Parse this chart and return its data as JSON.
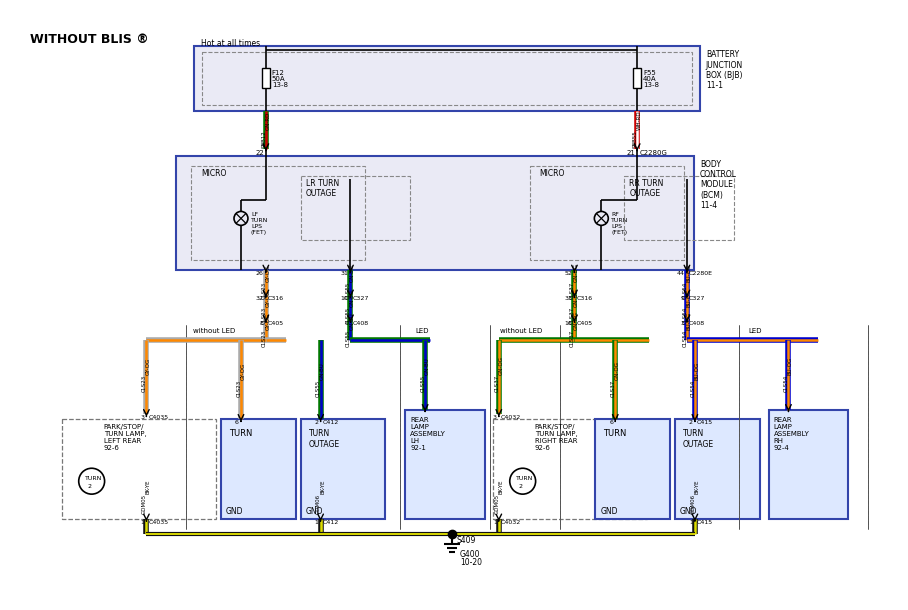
{
  "title": "WITHOUT BLIS ®",
  "bg_color": "#ffffff",
  "bjb_label": "BATTERY\nJUNCTION\nBOX (BJB)\n11-1",
  "bcm_label": "BODY\nCONTROL\nMODULE\n(BCM)\n11-4",
  "hot_label": "Hot at all times",
  "wire_GN_RD": [
    "#007700",
    "#cc0000"
  ],
  "wire_WH_RD": [
    "#cc0000",
    "#ffffff"
  ],
  "wire_GY_OG": [
    "#aaaaaa",
    "#ff8800"
  ],
  "wire_GN_BU": [
    "#007700",
    "#0000cc"
  ],
  "wire_BU_OG": [
    "#0000cc",
    "#ff8800"
  ],
  "wire_BK_YE": [
    "#111111",
    "#dddd00"
  ],
  "wire_GN_OG": [
    "#007700",
    "#ff8800"
  ]
}
